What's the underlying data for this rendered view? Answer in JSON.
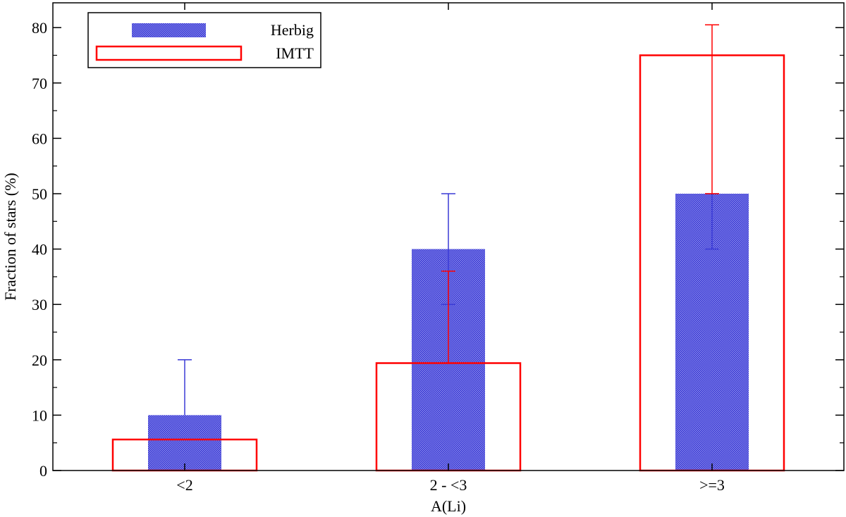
{
  "chart_data": {
    "type": "bar",
    "xlabel": "A(Li)",
    "ylabel": "Fraction of stars (%)",
    "categories": [
      "<2",
      "2 - <3",
      ">=3"
    ],
    "ylim": [
      0,
      85
    ],
    "yticks": [
      0,
      10,
      20,
      30,
      40,
      50,
      60,
      70,
      80
    ],
    "grid": false,
    "legend_position": "top-left",
    "series": [
      {
        "name": "Herbig",
        "style": "filled-dotted",
        "color": "#3a3ad6",
        "values": [
          10,
          40,
          50
        ],
        "error_high": [
          20,
          50,
          50
        ],
        "error_low": [
          10,
          30,
          40
        ]
      },
      {
        "name": "IMTT",
        "style": "outline",
        "color": "#ff0000",
        "values": [
          5.6,
          19.4,
          75
        ],
        "error_high": [
          5.6,
          36,
          80.5
        ],
        "error_low": [
          5.6,
          19.4,
          50
        ]
      }
    ]
  }
}
